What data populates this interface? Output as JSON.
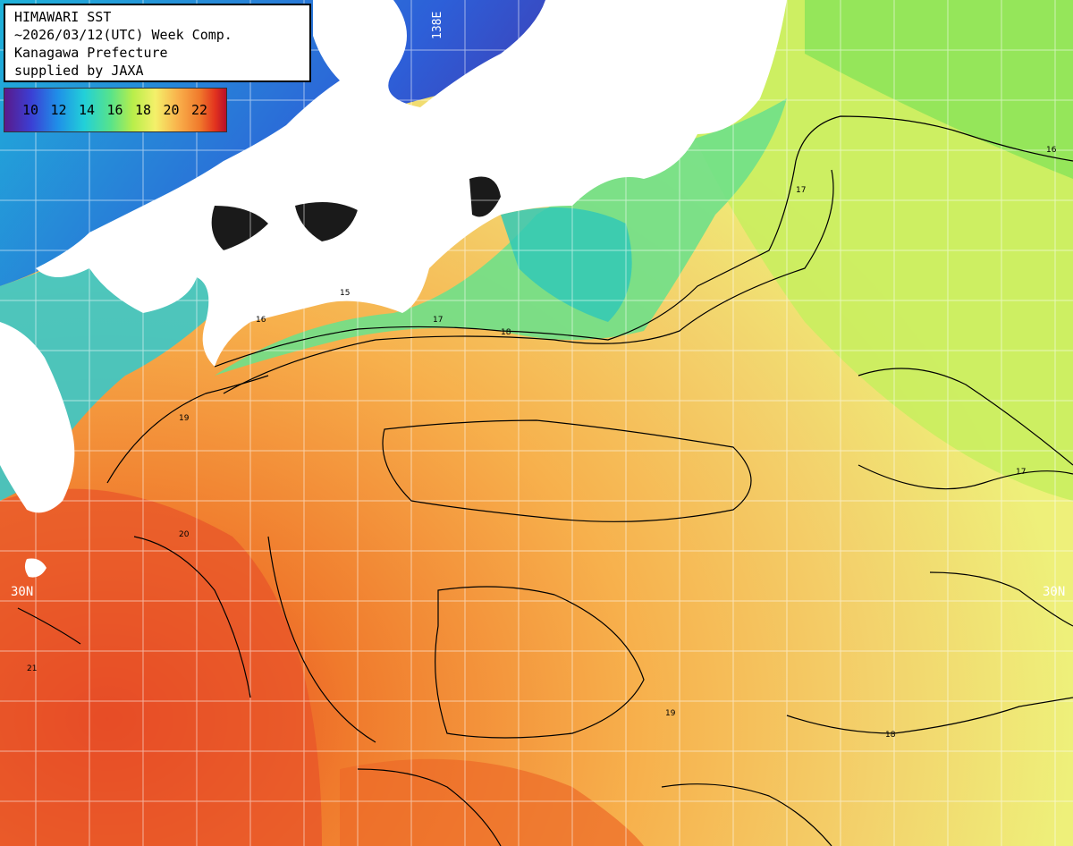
{
  "header": {
    "lines": [
      "HIMAWARI SST",
      "~2026/03/12(UTC) Week Comp.",
      "Kanagawa Prefecture",
      "supplied by JAXA"
    ]
  },
  "legend": {
    "labels": [
      "10",
      "12",
      "14",
      "16",
      "18",
      "20",
      "22"
    ],
    "colors": [
      "#5a1a8a",
      "#3b3fd4",
      "#1f8fe8",
      "#22d0d8",
      "#58e38a",
      "#b9ee4a",
      "#f4f06a",
      "#f9b24c",
      "#f07a2c",
      "#e2331e",
      "#b8102a"
    ]
  },
  "grid_labels": {
    "lat_left": "30N",
    "lat_right": "30N",
    "lon_top": "138E"
  },
  "contour_labels": [
    "15",
    "16",
    "17",
    "18",
    "19",
    "20",
    "21"
  ],
  "colors": {
    "land": "#ffffff",
    "ocean_warm": "#f07a2c",
    "ocean_mid": "#f4d070",
    "ocean_cool": "#b9ee4a",
    "ocean_cold": "#3b3fd4",
    "grid": "#ffffff",
    "contour": "#000000"
  }
}
